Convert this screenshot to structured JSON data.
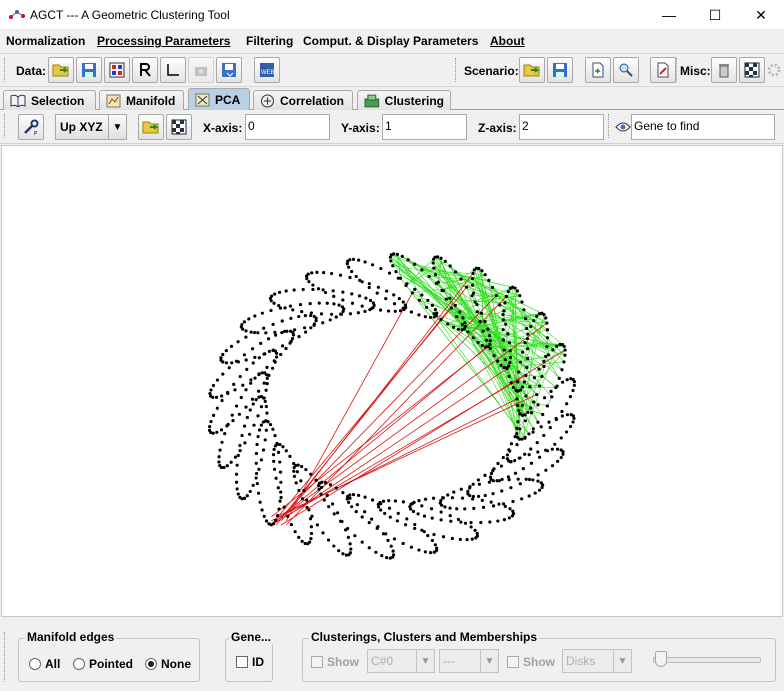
{
  "window": {
    "title": "AGCT --- A Geometric Clustering Tool"
  },
  "menu": {
    "normalization": "Normalization",
    "processing": "Processing Parameters",
    "filtering": "Filtering",
    "comput_display": "Comput. & Display Parameters",
    "about": "About"
  },
  "toolbar": {
    "data_label": "Data:",
    "scenario_label": "Scenario:",
    "misc_label": "Misc:"
  },
  "tabs": [
    {
      "label": "Selection",
      "icon": "book-icon"
    },
    {
      "label": "Manifold",
      "icon": "manifold-icon"
    },
    {
      "label": "PCA",
      "icon": "pca-icon"
    },
    {
      "label": "Correlation",
      "icon": "correlation-icon"
    },
    {
      "label": "Clustering",
      "icon": "clustering-icon"
    }
  ],
  "pca": {
    "view_mode": "Up XYZ",
    "x_axis_label": "X-axis:",
    "x_axis_value": "0",
    "y_axis_label": "Y-axis:",
    "y_axis_value": "1",
    "z_axis_label": "Z-axis:",
    "z_axis_value": "2",
    "gene_placeholder": "Gene to find"
  },
  "bottom": {
    "manifold_edges_title": "Manifold edges",
    "options": [
      "All",
      "Pointed",
      "None"
    ],
    "selected_option": "None",
    "genes_title": "Gene...",
    "id_label": "ID",
    "clusterings_title": "Clusterings, Clusters and Memberships",
    "show_label_1": "Show",
    "clustering_value": "C#0",
    "cluster_value": "---",
    "show_label_2": "Show",
    "display_value": "Disks"
  },
  "colors": {
    "points": "#000000",
    "manifold_edges": "#33dd22",
    "highlight_edges": "#dd1111",
    "active_tab": "#b8cfe5"
  }
}
